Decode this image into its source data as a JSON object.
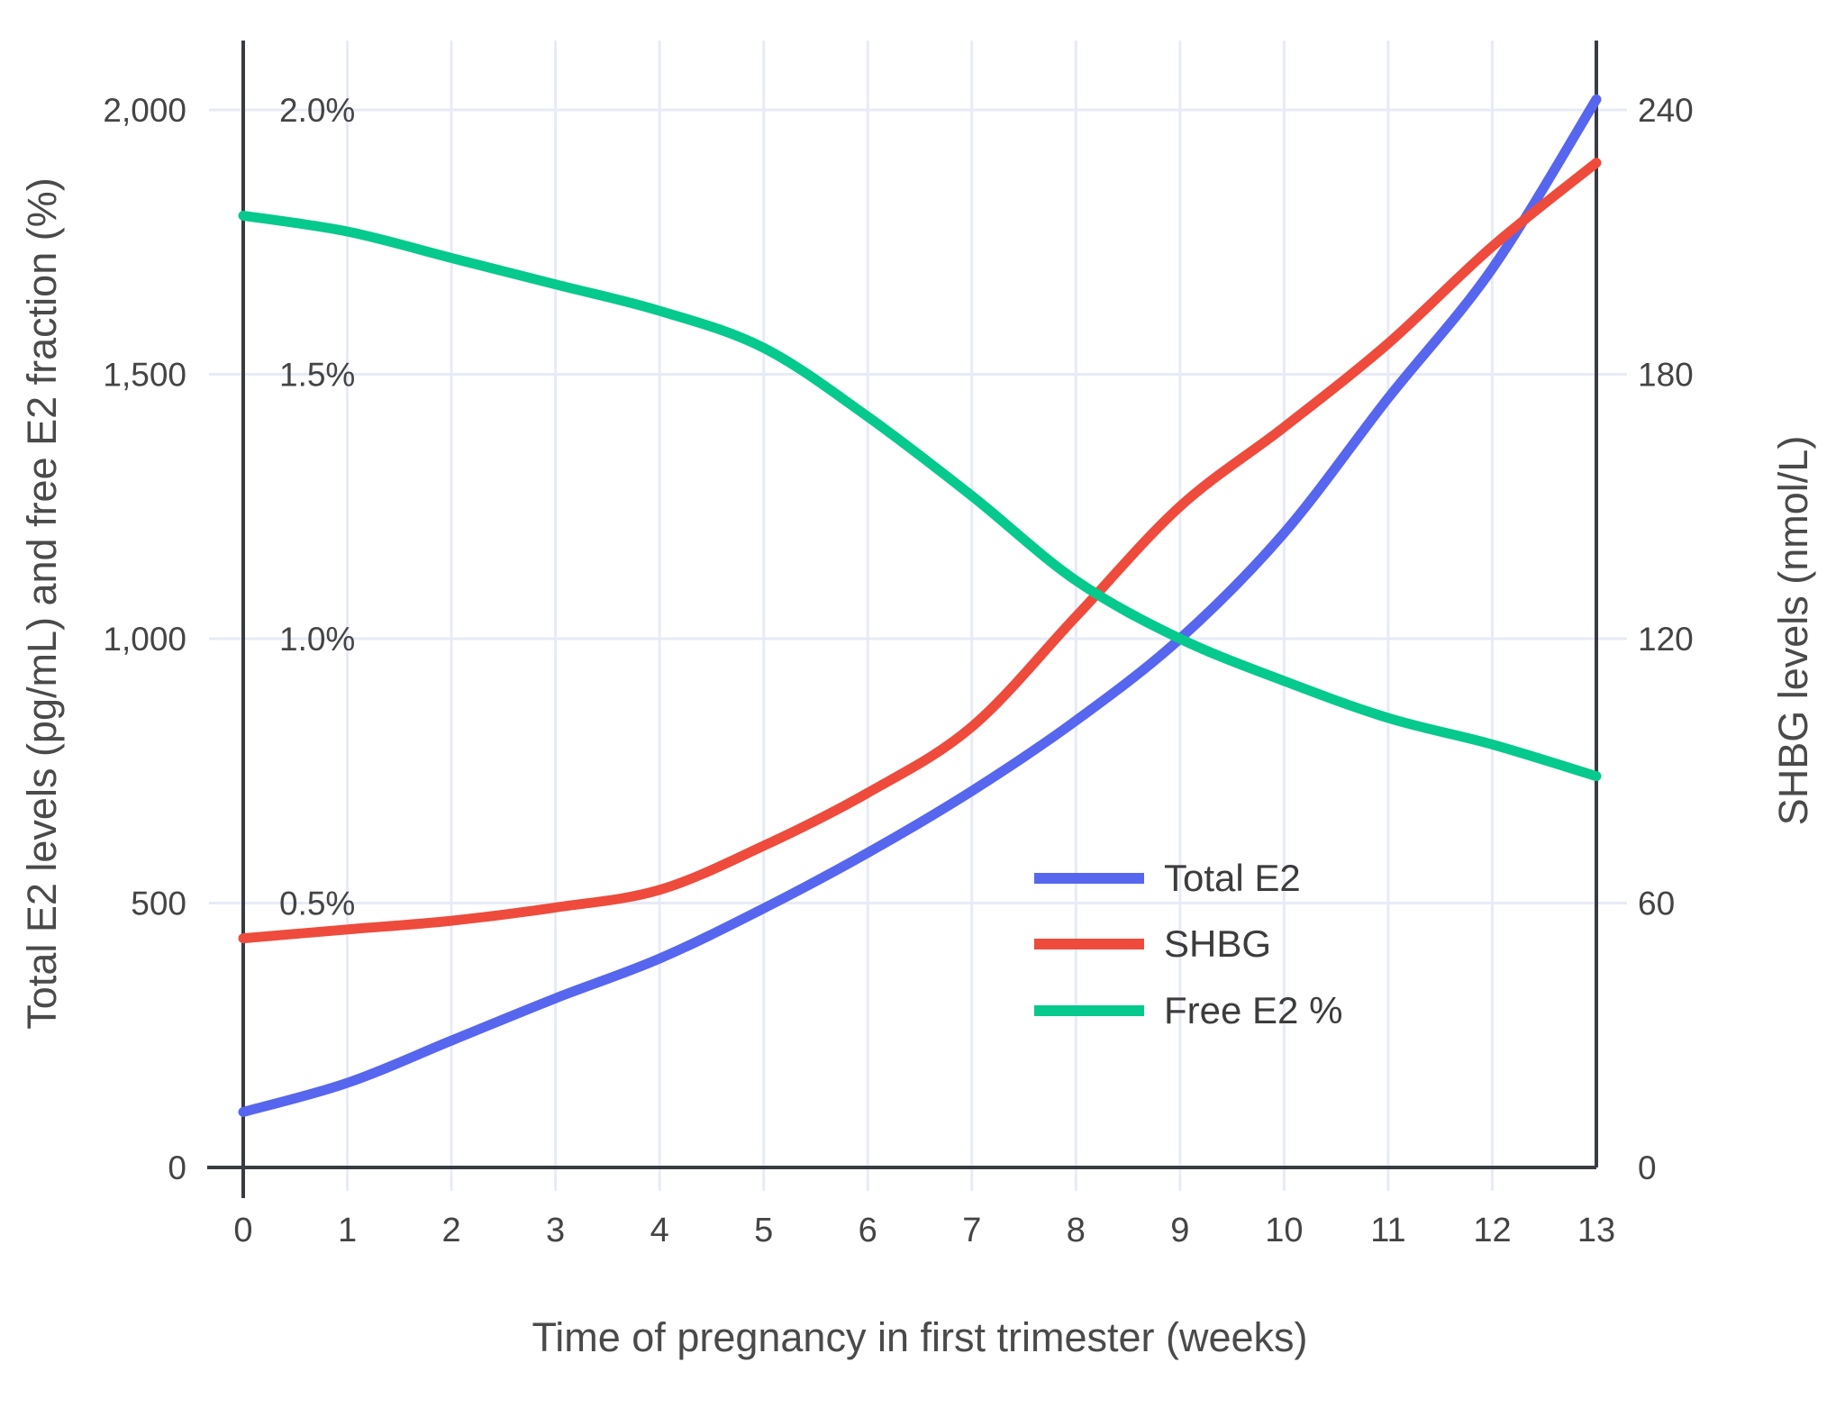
{
  "colors": {
    "total_e2": "#5766ee",
    "shbg": "#ee4b3c",
    "free_e2": "#06c98d",
    "grid": "#e7ebf6",
    "axis": "#383c42",
    "tick_text": "#444444",
    "title_text": "#4a4a4a",
    "legend_text": "#3c3c3c",
    "background": "#ffffff"
  },
  "chart_data": {
    "type": "line",
    "title": "",
    "x": [
      0,
      1,
      2,
      3,
      4,
      5,
      6,
      7,
      8,
      9,
      10,
      11,
      12,
      13
    ],
    "xlabel": "Time of pregnancy in first trimester (weeks)",
    "x_tick_labels": [
      "0",
      "1",
      "2",
      "3",
      "4",
      "5",
      "6",
      "7",
      "8",
      "9",
      "10",
      "11",
      "12",
      "13"
    ],
    "ylabel_left": "Total E2 levels (pg/mL) and free E2 fraction (%)",
    "ylabel_right": "SHBG levels (nmol/L)",
    "left_axis": {
      "range": [
        0,
        2140
      ],
      "tick_values": [
        0,
        500,
        1000,
        1500,
        2000
      ],
      "tick_labels": [
        "0",
        "500",
        "1,000",
        "1,500",
        "2,000"
      ]
    },
    "right_axis": {
      "range": [
        0,
        256.8
      ],
      "tick_values": [
        0,
        60,
        120,
        180,
        240
      ],
      "tick_labels": [
        "0",
        "60",
        "120",
        "180",
        "240"
      ]
    },
    "percent_annotations": [
      {
        "label": "2.0%",
        "at": 2000
      },
      {
        "label": "1.5%",
        "at": 1500
      },
      {
        "label": "1.0%",
        "at": 1000
      },
      {
        "label": "0.5%",
        "at": 500
      }
    ],
    "series": [
      {
        "name": "Total E2",
        "axis": "left",
        "unit": "pg/mL",
        "color_key": "total_e2",
        "values": [
          105,
          160,
          240,
          320,
          395,
          490,
          595,
          712,
          845,
          1000,
          1200,
          1455,
          1700,
          2020
        ]
      },
      {
        "name": "SHBG",
        "axis": "right",
        "unit": "nmol/L",
        "color_key": "shbg",
        "values": [
          52,
          54,
          56,
          59,
          63,
          73,
          85,
          100,
          125,
          150,
          168,
          187,
          209,
          228
        ]
      },
      {
        "name": "Free E2 %",
        "axis": "left_percent",
        "unit": "%",
        "color_key": "free_e2",
        "values": [
          1.8,
          1.77,
          1.72,
          1.67,
          1.62,
          1.55,
          1.42,
          1.27,
          1.11,
          1.0,
          0.92,
          0.85,
          0.8,
          0.74
        ]
      }
    ],
    "legend": {
      "position": "inside-right-middle",
      "entries": [
        "Total E2",
        "SHBG",
        "Free E2 %"
      ]
    },
    "grid": true
  }
}
